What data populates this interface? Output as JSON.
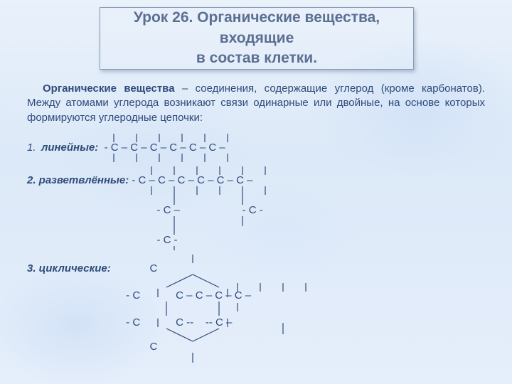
{
  "background_color": "#e5eefb",
  "text_color": "#2f4a7a",
  "title_color": "#5a6f92",
  "title_border": "#8a9ab0",
  "font_family": "Arial",
  "title": "Урок 26. Органические вещества, входящие\nв состав клетки.",
  "intro_bold": "Органические вещества",
  "intro_rest": " – соединения, содержащие углерод (кроме карбонатов). Между атомами углерода возникают связи одинарные или двойные, на основе которых формируются углеродные цепочки:",
  "item1_num": "1.",
  "item1_label": "линейные:",
  "item1_chain": "  - С – С – С – С – С – С –",
  "item2_label": "2. разветвлённые:",
  "item2_chain1": " - С – С – С – С – С – С –",
  "item2_chain2": "               - С –                     - С -",
  "item2_chain3": "               - С -",
  "item3_label": "3. циклические:",
  "item3_chain1": "                           С",
  "item3_chain2": "                   - С            С – С – С – С –",
  "item3_chain3": "                   - С            С --    -- С –",
  "item3_chain4": "                           С",
  "tick_color": "#2f4a7a"
}
